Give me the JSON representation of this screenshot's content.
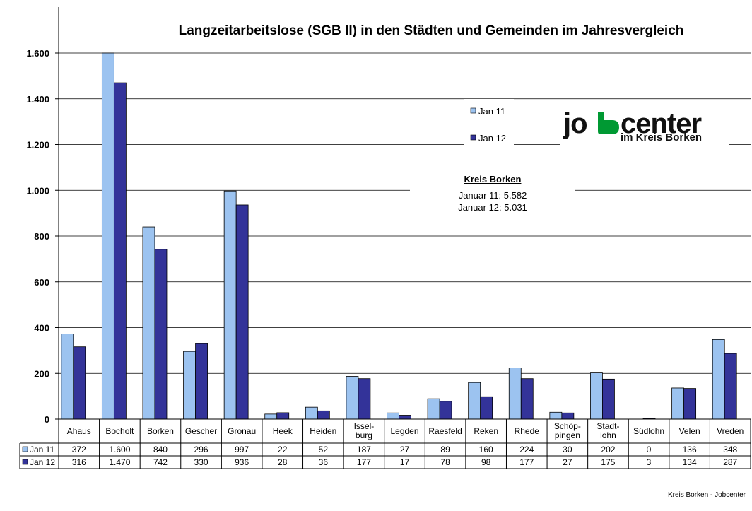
{
  "chart_data": {
    "type": "bar",
    "title": "Langzeitarbeitslose (SGB II) in den Städten und Gemeinden im Jahresvergleich",
    "categories": [
      "Ahaus",
      "Bocholt",
      "Borken",
      "Gescher",
      "Gronau",
      "Heek",
      "Heiden",
      "Issel-\nburg",
      "Legden",
      "Raesfeld",
      "Reken",
      "Rhede",
      "Schöp-\npingen",
      "Stadt-\nlohn",
      "Südlohn",
      "Velen",
      "Vreden"
    ],
    "series": [
      {
        "name": "Jan 11",
        "color": "#9CC3F0",
        "values": [
          372,
          1600,
          840,
          296,
          997,
          22,
          52,
          187,
          27,
          89,
          160,
          224,
          30,
          202,
          0,
          136,
          348
        ],
        "labels": [
          "372",
          "1.600",
          "840",
          "296",
          "997",
          "22",
          "52",
          "187",
          "27",
          "89",
          "160",
          "224",
          "30",
          "202",
          "0",
          "136",
          "348"
        ]
      },
      {
        "name": "Jan 12",
        "color": "#333399",
        "values": [
          316,
          1470,
          742,
          330,
          936,
          28,
          36,
          177,
          17,
          78,
          98,
          177,
          27,
          175,
          3,
          134,
          287
        ],
        "labels": [
          "316",
          "1.470",
          "742",
          "330",
          "936",
          "28",
          "36",
          "177",
          "17",
          "78",
          "98",
          "177",
          "27",
          "175",
          "3",
          "134",
          "287"
        ]
      }
    ],
    "ylim": [
      0,
      1700
    ],
    "yticks": [
      0,
      200,
      400,
      600,
      800,
      1000,
      1200,
      1400,
      1600
    ],
    "ytick_labels": [
      "0",
      "200",
      "400",
      "600",
      "800",
      "1.000",
      "1.200",
      "1.400",
      "1.600"
    ],
    "grid": true,
    "legend_position": "upper-middle",
    "data_table": true
  },
  "annotation": {
    "heading": "Kreis Borken",
    "lines": [
      "Januar 11: 5.582",
      "Januar 12: 5.031"
    ]
  },
  "logo": {
    "word_start": "jo",
    "word_end": "center",
    "subline": "im Kreis Borken",
    "green": "#009933",
    "black": "#111111"
  },
  "footer": "Kreis Borken - Jobcenter"
}
